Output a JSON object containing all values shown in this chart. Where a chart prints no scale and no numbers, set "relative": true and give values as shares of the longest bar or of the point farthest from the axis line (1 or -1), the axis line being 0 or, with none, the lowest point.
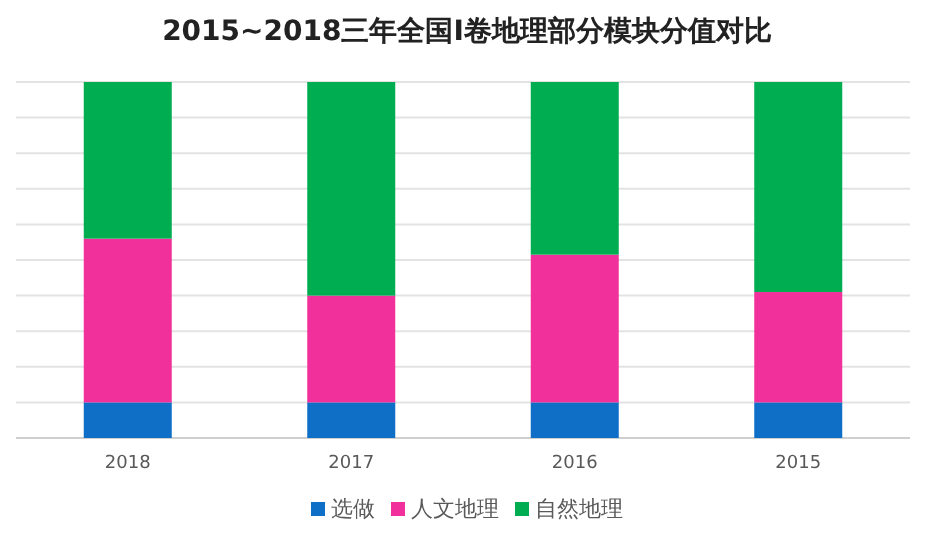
{
  "chart_data": {
    "type": "bar",
    "title": "2015~2018三年全国I卷地理部分模块分值对比",
    "categories": [
      "2018",
      "2017",
      "2016",
      "2015"
    ],
    "stacked": true,
    "relative": true,
    "grid": "y",
    "legend": "bottom",
    "series": [
      {
        "name": "选做",
        "color": "#0f6fc6",
        "values": [
          0.1,
          0.1,
          0.1,
          0.1
        ]
      },
      {
        "name": "人文地理",
        "color": "#f2309b",
        "values": [
          0.46,
          0.3,
          0.415,
          0.31
        ]
      },
      {
        "name": "自然地理",
        "color": "#00ad50",
        "values": [
          0.44,
          0.6,
          0.485,
          0.59
        ]
      }
    ]
  }
}
